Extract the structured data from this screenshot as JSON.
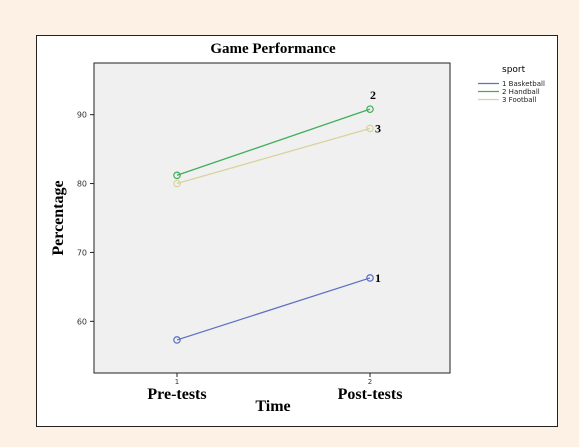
{
  "colors": {
    "page_background": "#fdf1e6",
    "plot_background": "#f0f0f0",
    "series": [
      "#5b6fc4",
      "#3fae5a",
      "#d9d39c"
    ]
  },
  "chart_data": {
    "type": "line",
    "title": "Game Performance",
    "xlabel": "Time",
    "ylabel": "Percentage",
    "categories": [
      "Pre-tests",
      "Post-tests"
    ],
    "category_codes": [
      "1",
      "2"
    ],
    "ylim": [
      52.5,
      97.5
    ],
    "yticks": [
      60,
      70,
      80,
      90
    ],
    "grid": false,
    "legend": {
      "title": "sport",
      "position": "top-right, outside plot"
    },
    "series": [
      {
        "name": "1 Basketball",
        "label": "1",
        "values": [
          57.3,
          66.3
        ]
      },
      {
        "name": "2 Handball",
        "label": "2",
        "values": [
          81.2,
          90.8
        ]
      },
      {
        "name": "3 Football",
        "label": "3",
        "values": [
          80.0,
          88.0
        ]
      }
    ]
  }
}
